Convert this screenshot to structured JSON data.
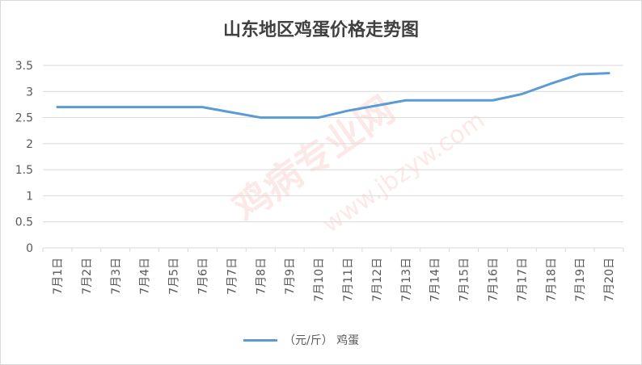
{
  "chart_data": {
    "type": "line",
    "title": "山东地区鸡蛋价格走势图",
    "xlabel": "",
    "ylabel": "",
    "categories": [
      "7月1日",
      "7月2日",
      "7月3日",
      "7月4日",
      "7月5日",
      "7月6日",
      "7月7日",
      "7月8日",
      "7月9日",
      "7月10日",
      "7月11日",
      "7月12日",
      "7月13日",
      "7月14日",
      "7月15日",
      "7月16日",
      "7月17日",
      "7月18日",
      "7月19日",
      "7月20日"
    ],
    "series": [
      {
        "name": "（元/斤） 鸡蛋",
        "values": [
          2.7,
          2.7,
          2.7,
          2.7,
          2.7,
          2.7,
          2.6,
          2.5,
          2.5,
          2.5,
          2.63,
          2.73,
          2.83,
          2.83,
          2.83,
          2.83,
          2.95,
          3.15,
          3.33,
          3.35
        ],
        "color": "#5b9bd5"
      }
    ],
    "ylim": [
      0,
      3.5
    ],
    "yticks": [
      "0",
      "0.5",
      "1",
      "1.5",
      "2",
      "2.5",
      "3",
      "3.5"
    ],
    "grid": true,
    "legend": "bottom"
  },
  "watermark": {
    "main": "鸡病专业网",
    "url": "www.jbzyw.com"
  }
}
